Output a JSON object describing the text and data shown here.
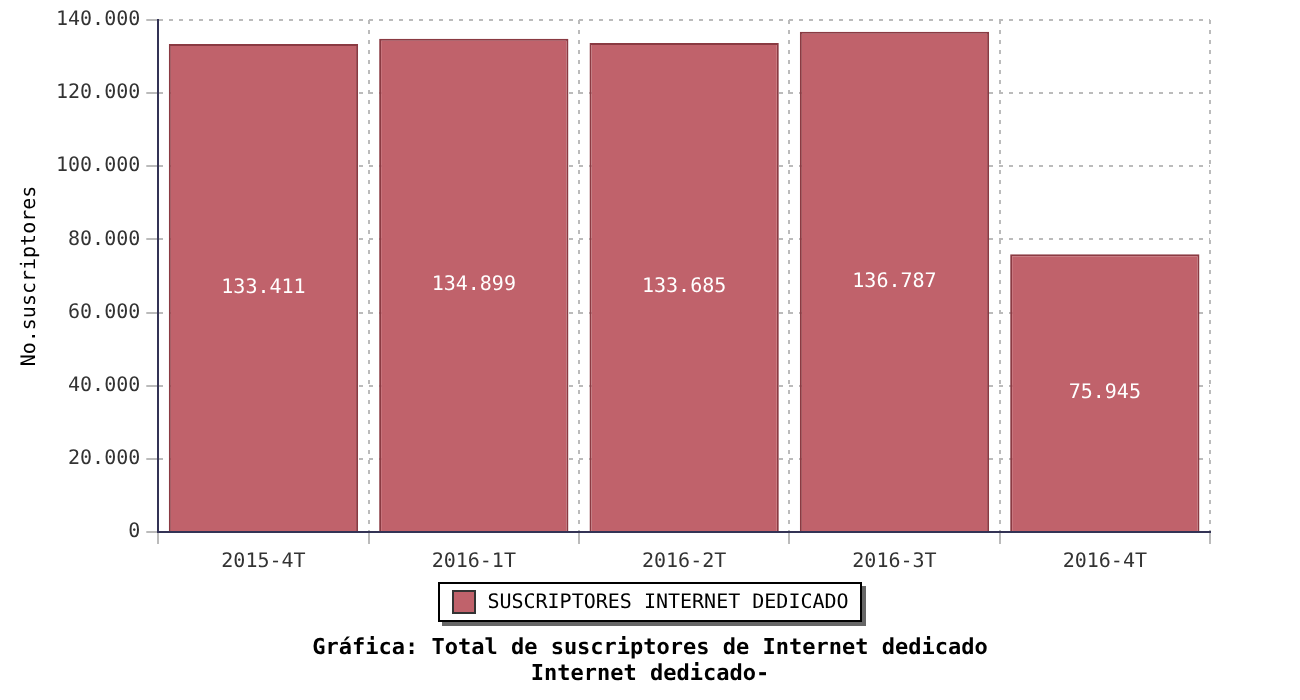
{
  "chart_data": {
    "type": "bar",
    "title": "Gráfica: Total de suscriptores de Internet dedicado",
    "subtitle": "Internet dedicado-",
    "ylabel": "No.suscriptores",
    "categories": [
      "2015-4T",
      "2016-1T",
      "2016-2T",
      "2016-3T",
      "2016-4T"
    ],
    "series": [
      {
        "name": "SUSCRIPTORES INTERNET DEDICADO",
        "color": "#c0626b",
        "values": [
          133411,
          134899,
          133685,
          136787,
          75945
        ],
        "value_labels": [
          "133.411",
          "134.899",
          "133.685",
          "136.787",
          "75.945"
        ]
      }
    ],
    "ylim": [
      0,
      140000
    ],
    "yticks": [
      {
        "value": 0,
        "label": "0"
      },
      {
        "value": 20000,
        "label": "20.000"
      },
      {
        "value": 40000,
        "label": "40.000"
      },
      {
        "value": 60000,
        "label": "60.000"
      },
      {
        "value": 80000,
        "label": "80.000"
      },
      {
        "value": 100000,
        "label": "100.000"
      },
      {
        "value": 120000,
        "label": "120.000"
      },
      {
        "value": 140000,
        "label": "140.000"
      }
    ],
    "grid": true,
    "legend": "bottom"
  }
}
